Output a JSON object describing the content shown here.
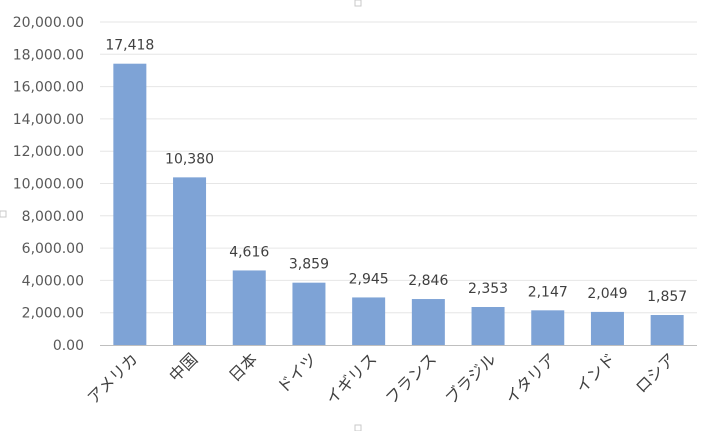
{
  "chart_data": {
    "type": "bar",
    "categories": [
      "アメリカ",
      "中国",
      "日本",
      "ドイツ",
      "イギリス",
      "フランス",
      "ブラジル",
      "イタリア",
      "インド",
      "ロシア"
    ],
    "values": [
      17418,
      10380,
      4616,
      3859,
      2945,
      2846,
      2353,
      2147,
      2049,
      1857
    ],
    "data_labels": [
      "17,418",
      "10,380",
      "4,616",
      "3,859",
      "2,945",
      "2,846",
      "2,353",
      "2,147",
      "2,049",
      "1,857"
    ],
    "y_ticks": [
      "0.00",
      "2,000.00",
      "4,000.00",
      "6,000.00",
      "8,000.00",
      "10,000.00",
      "12,000.00",
      "14,000.00",
      "16,000.00",
      "18,000.00",
      "20,000.00"
    ],
    "ylim": [
      0,
      20000
    ],
    "grid": true,
    "bar_color": "#7ea3d6",
    "grid_color": "#e6e6e6",
    "axis_color": "#bfbfbf"
  }
}
